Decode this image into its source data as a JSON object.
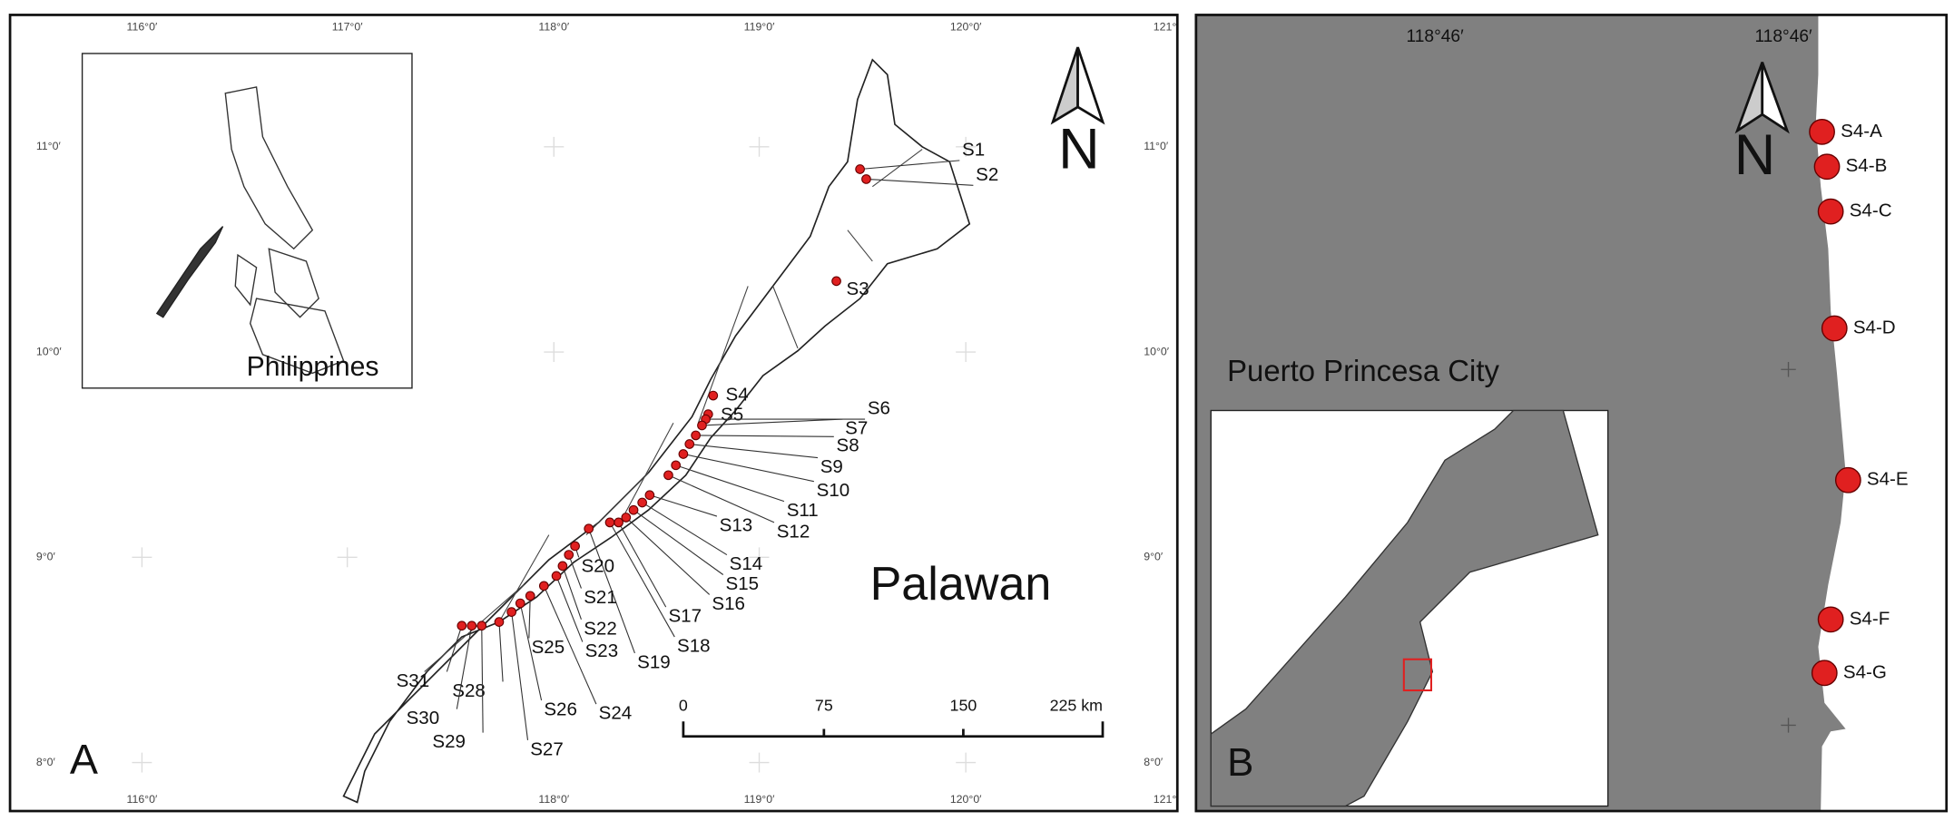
{
  "panel_a": {
    "letter": "A",
    "region_label": "Palawan",
    "inset_label": "Philippines",
    "north": "N",
    "top_coords": [
      "116°0′",
      "117°0′",
      "118°0′",
      "119°0′",
      "120°0′",
      "121°"
    ],
    "bottom_coords": [
      "116°0′",
      "118°0′",
      "119°0′",
      "120°0′",
      "121°"
    ],
    "left_coords": [
      "11°0′",
      "10°0′",
      "9°0′",
      "8°0′"
    ],
    "right_coords": [
      "11°0′",
      "10°0′",
      "9°0′",
      "8°0′"
    ],
    "sites": [
      "S1",
      "S2",
      "S3",
      "S4",
      "S5",
      "S6",
      "S7",
      "S8",
      "S9",
      "S10",
      "S11",
      "S12",
      "S13",
      "S14",
      "S15",
      "S16",
      "S17",
      "S18",
      "S19",
      "S20",
      "S21",
      "S22",
      "S23",
      "S24",
      "S25",
      "S26",
      "S27",
      "S28",
      "S29",
      "S30",
      "S31"
    ],
    "scale_bar": [
      "0",
      "75",
      "150",
      "225 km"
    ]
  },
  "panel_b": {
    "letter": "B",
    "place_label": "Puerto Princesa City",
    "north": "N",
    "top_coords": [
      "118°46′",
      "118°46′"
    ],
    "sites": [
      "S4-A",
      "S4-B",
      "S4-C",
      "S4-D",
      "S4-E",
      "S4-F",
      "S4-G"
    ]
  }
}
